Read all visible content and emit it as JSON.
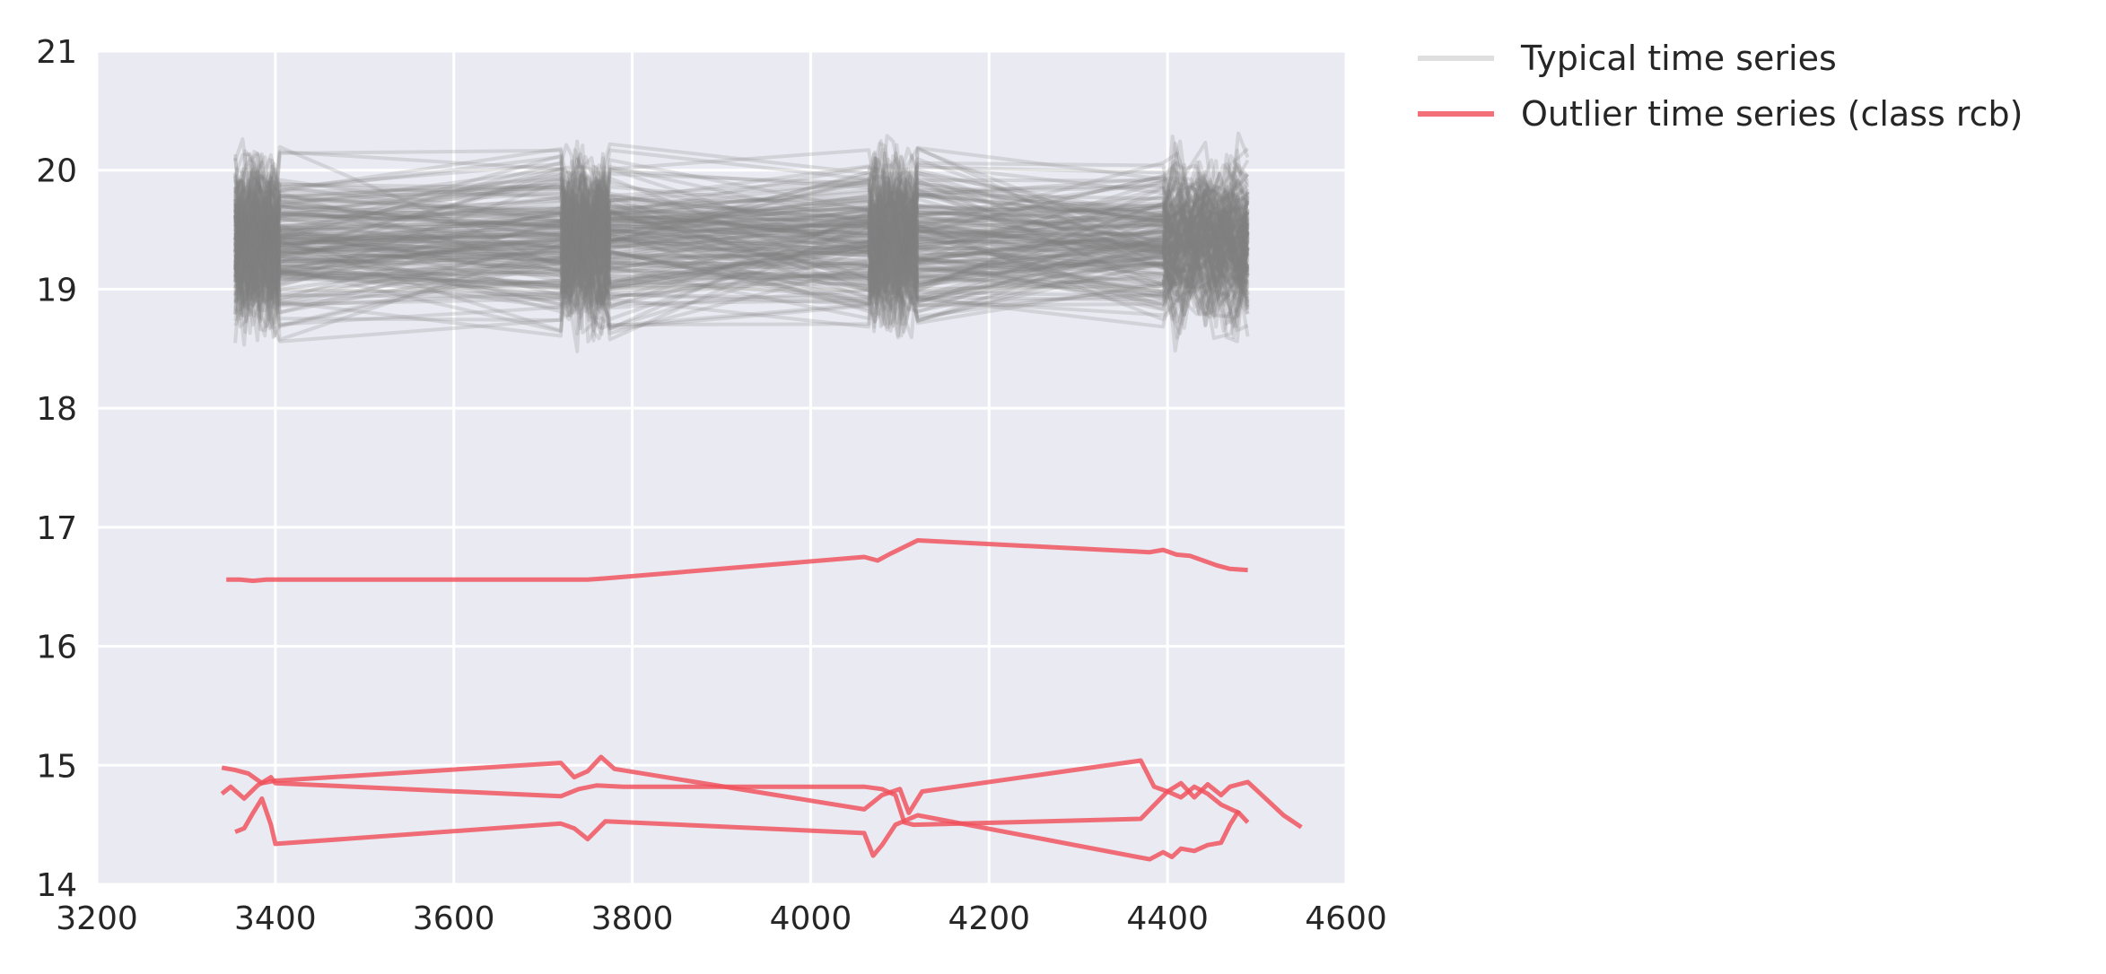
{
  "chart_data": {
    "type": "line",
    "title": "",
    "xlabel": "",
    "ylabel": "",
    "xlim": [
      3200,
      4600
    ],
    "ylim": [
      14,
      21
    ],
    "x_ticks": [
      3200,
      3400,
      3600,
      3800,
      4000,
      4200,
      4400,
      4600
    ],
    "y_ticks": [
      14,
      15,
      16,
      17,
      18,
      19,
      20,
      21
    ],
    "x_tick_labels": [
      "3200",
      "3400",
      "3600",
      "3800",
      "4000",
      "4200",
      "4400",
      "4600"
    ],
    "y_tick_labels": [
      "14",
      "15",
      "16",
      "17",
      "18",
      "19",
      "20",
      "21"
    ],
    "grid": true,
    "legend_position": "outside-top-right",
    "colors": {
      "background": "#eaeaf2",
      "grid": "#ffffff",
      "typical": "#808080",
      "outlier": "#f0505a"
    },
    "series": [
      {
        "name": "Typical time series",
        "color": "#808080",
        "band_x_range": [
          3355,
          4490
        ],
        "band_typical_range": [
          18.7,
          20.1
        ],
        "extreme_range": [
          18.25,
          20.55
        ],
        "observation_clusters": [
          [
            3355,
            3405
          ],
          [
            3720,
            3775
          ],
          [
            4065,
            4120
          ],
          [
            4395,
            4490
          ]
        ]
      },
      {
        "name": "Outlier time series (class rcb)",
        "color": "#f0505a",
        "lines": [
          {
            "x": [
              3345,
              3360,
              3375,
              3390,
              3400,
              3720,
              3735,
              3750,
              3770,
              4060,
              4075,
              4090,
              4120,
              4380,
              4395,
              4410,
              4425,
              4440,
              4455,
              4470,
              4490
            ],
            "y": [
              16.56,
              16.56,
              16.55,
              16.56,
              16.56,
              16.56,
              16.56,
              16.56,
              16.57,
              16.75,
              16.72,
              16.78,
              16.89,
              16.79,
              16.81,
              16.77,
              16.76,
              16.72,
              16.68,
              16.65,
              16.64
            ]
          },
          {
            "x": [
              3340,
              3355,
              3370,
              3385,
              3400,
              3720,
              3735,
              3750,
              3765,
              3780,
              4060,
              4080,
              4100,
              4110,
              4125,
              4370,
              4385,
              4400,
              4415,
              4430,
              4445,
              4460,
              4480,
              4490
            ],
            "y": [
              14.98,
              14.96,
              14.93,
              14.85,
              14.87,
              15.02,
              14.9,
              14.95,
              15.07,
              14.97,
              14.63,
              14.75,
              14.8,
              14.6,
              14.78,
              15.04,
              14.82,
              14.78,
              14.73,
              14.82,
              14.76,
              14.67,
              14.6,
              14.52
            ]
          },
          {
            "x": [
              3340,
              3350,
              3365,
              3380,
              3395,
              3400,
              3720,
              3740,
              3760,
              3790,
              4060,
              4080,
              4095,
              4105,
              4115,
              4370,
              4400,
              4415,
              4430,
              4445,
              4460,
              4470,
              4480,
              4490,
              4510,
              4530,
              4550
            ],
            "y": [
              14.76,
              14.82,
              14.72,
              14.83,
              14.9,
              14.85,
              14.74,
              14.8,
              14.83,
              14.82,
              14.82,
              14.8,
              14.75,
              14.52,
              14.5,
              14.55,
              14.78,
              14.85,
              14.73,
              14.84,
              14.75,
              14.82,
              14.84,
              14.86,
              14.72,
              14.58,
              14.48
            ]
          },
          {
            "x": [
              3355,
              3365,
              3375,
              3385,
              3395,
              3400,
              3720,
              3735,
              3750,
              3770,
              4060,
              4070,
              4080,
              4095,
              4120,
              4380,
              4395,
              4405,
              4415,
              4430,
              4445,
              4460,
              4470,
              4480
            ],
            "y": [
              14.44,
              14.47,
              14.6,
              14.72,
              14.5,
              14.34,
              14.51,
              14.47,
              14.38,
              14.53,
              14.43,
              14.24,
              14.33,
              14.5,
              14.58,
              14.21,
              14.27,
              14.23,
              14.3,
              14.28,
              14.33,
              14.35,
              14.5,
              14.62
            ]
          }
        ]
      }
    ]
  }
}
